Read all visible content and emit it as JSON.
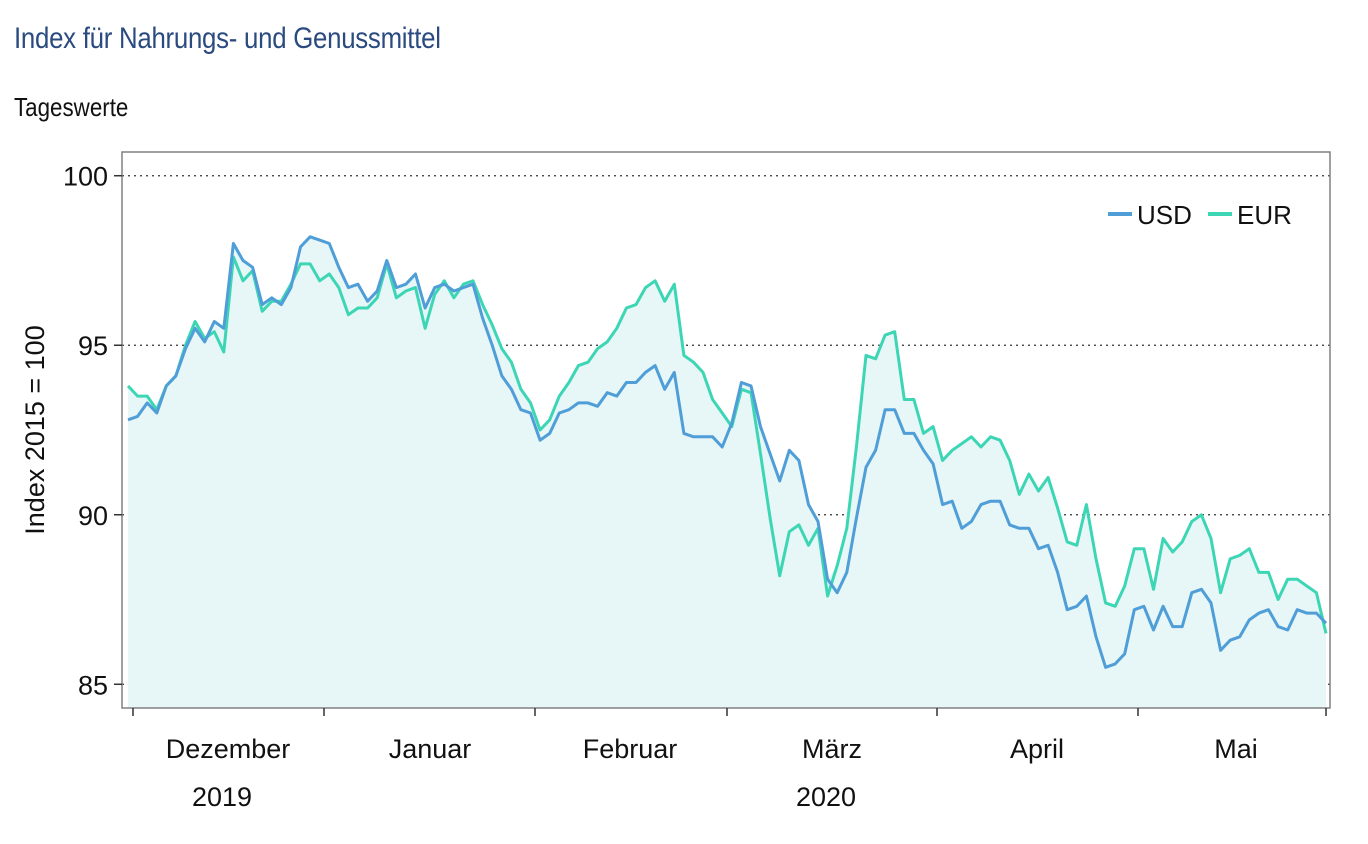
{
  "title": "Index für Nahrungs- und Genussmittel",
  "subtitle": "Tageswerte",
  "colors": {
    "USD": "#4f9ed8",
    "EUR": "#3dd6b5",
    "fill": "#e7f6f7",
    "title": "#2a4a80"
  },
  "chart_data": {
    "type": "line",
    "ylabel": "Index 2015 = 100",
    "ylim": [
      84.3,
      100.7
    ],
    "yticks": [
      85,
      90,
      95,
      100
    ],
    "grid": "dotted horizontal",
    "legend_position": "top-right",
    "x_month_labels": [
      "Dezember",
      "Januar",
      "Februar",
      "März",
      "April",
      "Mai"
    ],
    "x_year_labels": [
      "2019",
      "2020"
    ],
    "series": [
      {
        "name": "USD",
        "values": [
          92.8,
          92.9,
          93.3,
          93.0,
          93.8,
          94.1,
          94.9,
          95.5,
          95.1,
          95.7,
          95.5,
          98.0,
          97.5,
          97.3,
          96.2,
          96.4,
          96.2,
          96.7,
          97.9,
          98.2,
          98.1,
          98.0,
          97.3,
          96.7,
          96.8,
          96.3,
          96.6,
          97.5,
          96.7,
          96.8,
          97.1,
          96.1,
          96.7,
          96.8,
          96.6,
          96.7,
          96.8,
          95.8,
          95.0,
          94.1,
          93.7,
          93.1,
          93.0,
          92.2,
          92.4,
          93.0,
          93.1,
          93.3,
          93.3,
          93.2,
          93.6,
          93.5,
          93.9,
          93.9,
          94.2,
          94.4,
          93.7,
          94.2,
          92.4,
          92.3,
          92.3,
          92.3,
          92.0,
          92.7,
          93.9,
          93.8,
          92.6,
          91.8,
          91.0,
          91.9,
          91.6,
          90.3,
          89.8,
          88.1,
          87.7,
          88.3,
          89.9,
          91.4,
          91.9,
          93.1,
          93.1,
          92.4,
          92.4,
          91.9,
          91.5,
          90.3,
          90.4,
          89.6,
          89.8,
          90.3,
          90.4,
          90.4,
          89.7,
          89.6,
          89.6,
          89.0,
          89.1,
          88.3,
          87.2,
          87.3,
          87.6,
          86.4,
          85.5,
          85.6,
          85.9,
          87.2,
          87.3,
          86.6,
          87.3,
          86.7,
          86.7,
          87.7,
          87.8,
          87.4,
          86.0,
          86.3,
          86.4,
          86.9,
          87.1,
          87.2,
          86.7,
          86.6,
          87.2,
          87.1,
          87.1,
          86.8
        ]
      },
      {
        "name": "EUR",
        "values": [
          93.8,
          93.5,
          93.5,
          93.1,
          93.8,
          94.1,
          95.0,
          95.7,
          95.2,
          95.4,
          94.8,
          97.6,
          96.9,
          97.2,
          96.0,
          96.3,
          96.3,
          96.8,
          97.4,
          97.4,
          96.9,
          97.1,
          96.7,
          95.9,
          96.1,
          96.1,
          96.4,
          97.4,
          96.4,
          96.6,
          96.7,
          95.5,
          96.5,
          96.9,
          96.4,
          96.8,
          96.9,
          96.2,
          95.6,
          94.9,
          94.5,
          93.7,
          93.3,
          92.5,
          92.8,
          93.5,
          93.9,
          94.4,
          94.5,
          94.9,
          95.1,
          95.5,
          96.1,
          96.2,
          96.7,
          96.9,
          96.3,
          96.8,
          94.7,
          94.5,
          94.2,
          93.4,
          93.0,
          92.6,
          93.7,
          93.6,
          91.8,
          89.9,
          88.2,
          89.5,
          89.7,
          89.1,
          89.6,
          87.6,
          88.5,
          89.6,
          92.0,
          94.7,
          94.6,
          95.3,
          95.4,
          93.4,
          93.4,
          92.4,
          92.6,
          91.6,
          91.9,
          92.1,
          92.3,
          92.0,
          92.3,
          92.2,
          91.6,
          90.6,
          91.2,
          90.7,
          91.1,
          90.2,
          89.2,
          89.1,
          90.3,
          88.7,
          87.4,
          87.3,
          87.9,
          89.0,
          89.0,
          87.8,
          89.3,
          88.9,
          89.2,
          89.8,
          90.0,
          89.3,
          87.7,
          88.7,
          88.8,
          89.0,
          88.3,
          88.3,
          87.5,
          88.1,
          88.1,
          87.9,
          87.7,
          86.5
        ]
      }
    ]
  }
}
